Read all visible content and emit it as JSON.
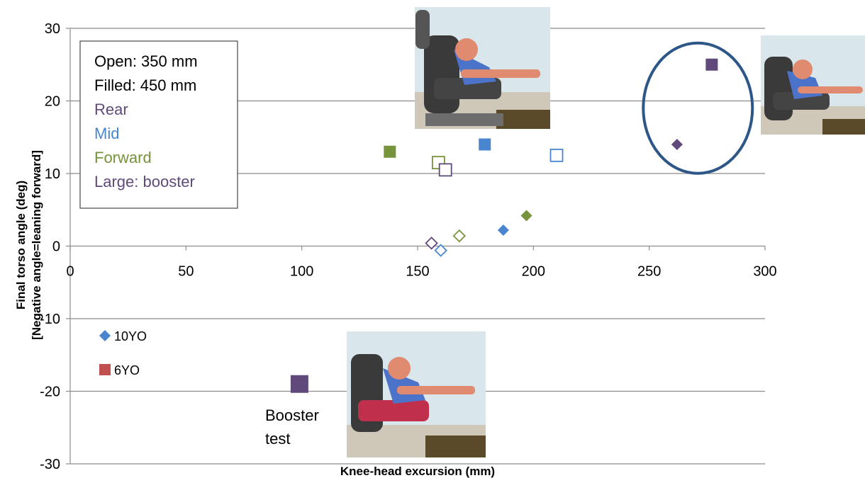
{
  "chart_data": {
    "type": "scatter",
    "xlabel": "Knee-head excursion (mm)",
    "ylabel": "Final  torso angle (deg)",
    "ylabel2": "[Negative angle=leaning forward]",
    "xlim": [
      0,
      300
    ],
    "ylim": [
      -30,
      30
    ],
    "x_ticks": [
      "0",
      "50",
      "100",
      "150",
      "200",
      "250",
      "300"
    ],
    "y_ticks": [
      "30",
      "20",
      "10",
      "0",
      "-10",
      "-20",
      "-30"
    ],
    "grid": "horizontal",
    "legend": [
      {
        "label": "10YO",
        "marker": "diamond",
        "color": "#4a86cf"
      },
      {
        "label": "6YO",
        "marker": "square",
        "color": "#c0504d"
      }
    ],
    "info_box": [
      {
        "text": "Open: 350 mm",
        "color": "#000000"
      },
      {
        "text": "Filled: 450 mm",
        "color": "#000000"
      },
      {
        "text": "Rear",
        "color": "#604a7b"
      },
      {
        "text": "Mid",
        "color": "#4a86cf"
      },
      {
        "text": "Forward",
        "color": "#77933c"
      },
      {
        "text": "Large: booster",
        "color": "#604a7b"
      }
    ],
    "points": [
      {
        "x": 277,
        "y": 25,
        "marker": "square",
        "filled": true,
        "size": "normal",
        "color": "#604a7b",
        "group": "6YO",
        "position": "Rear"
      },
      {
        "x": 262,
        "y": 14,
        "marker": "diamond",
        "filled": true,
        "size": "normal",
        "color": "#604a7b",
        "group": "10YO",
        "position": "Rear"
      },
      {
        "x": 138,
        "y": 13,
        "marker": "square",
        "filled": true,
        "size": "normal",
        "color": "#77933c",
        "group": "6YO",
        "position": "Forward"
      },
      {
        "x": 179,
        "y": 14,
        "marker": "square",
        "filled": true,
        "size": "normal",
        "color": "#4a86cf",
        "group": "6YO",
        "position": "Mid"
      },
      {
        "x": 210,
        "y": 12.5,
        "marker": "square",
        "filled": false,
        "size": "normal",
        "color": "#4a86cf",
        "group": "6YO",
        "position": "Mid"
      },
      {
        "x": 159,
        "y": 11.5,
        "marker": "square",
        "filled": false,
        "size": "normal",
        "color": "#77933c",
        "group": "6YO",
        "position": "Forward"
      },
      {
        "x": 162,
        "y": 10.5,
        "marker": "square",
        "filled": false,
        "size": "normal",
        "color": "#604a7b",
        "group": "6YO",
        "position": "Rear"
      },
      {
        "x": 197,
        "y": 4.2,
        "marker": "diamond",
        "filled": true,
        "size": "normal",
        "color": "#77933c",
        "group": "10YO",
        "position": "Forward"
      },
      {
        "x": 187,
        "y": 2.2,
        "marker": "diamond",
        "filled": true,
        "size": "normal",
        "color": "#4a86cf",
        "group": "10YO",
        "position": "Mid"
      },
      {
        "x": 168,
        "y": 1.4,
        "marker": "diamond",
        "filled": false,
        "size": "normal",
        "color": "#77933c",
        "group": "10YO",
        "position": "Forward"
      },
      {
        "x": 156,
        "y": 0.4,
        "marker": "diamond",
        "filled": false,
        "size": "normal",
        "color": "#604a7b",
        "group": "10YO",
        "position": "Rear"
      },
      {
        "x": 160,
        "y": -0.6,
        "marker": "diamond",
        "filled": false,
        "size": "normal",
        "color": "#4a86cf",
        "group": "10YO",
        "position": "Mid"
      },
      {
        "x": 99,
        "y": -19,
        "marker": "square",
        "filled": true,
        "size": "large",
        "color": "#604a7b",
        "group": "6YO",
        "position": "Rear (booster)"
      }
    ],
    "annotations": [
      {
        "text_lines": [
          "Booster",
          "test"
        ]
      }
    ],
    "highlight": {
      "shape": "ellipse",
      "center": [
        271,
        19
      ],
      "color": "#2e5789"
    }
  }
}
